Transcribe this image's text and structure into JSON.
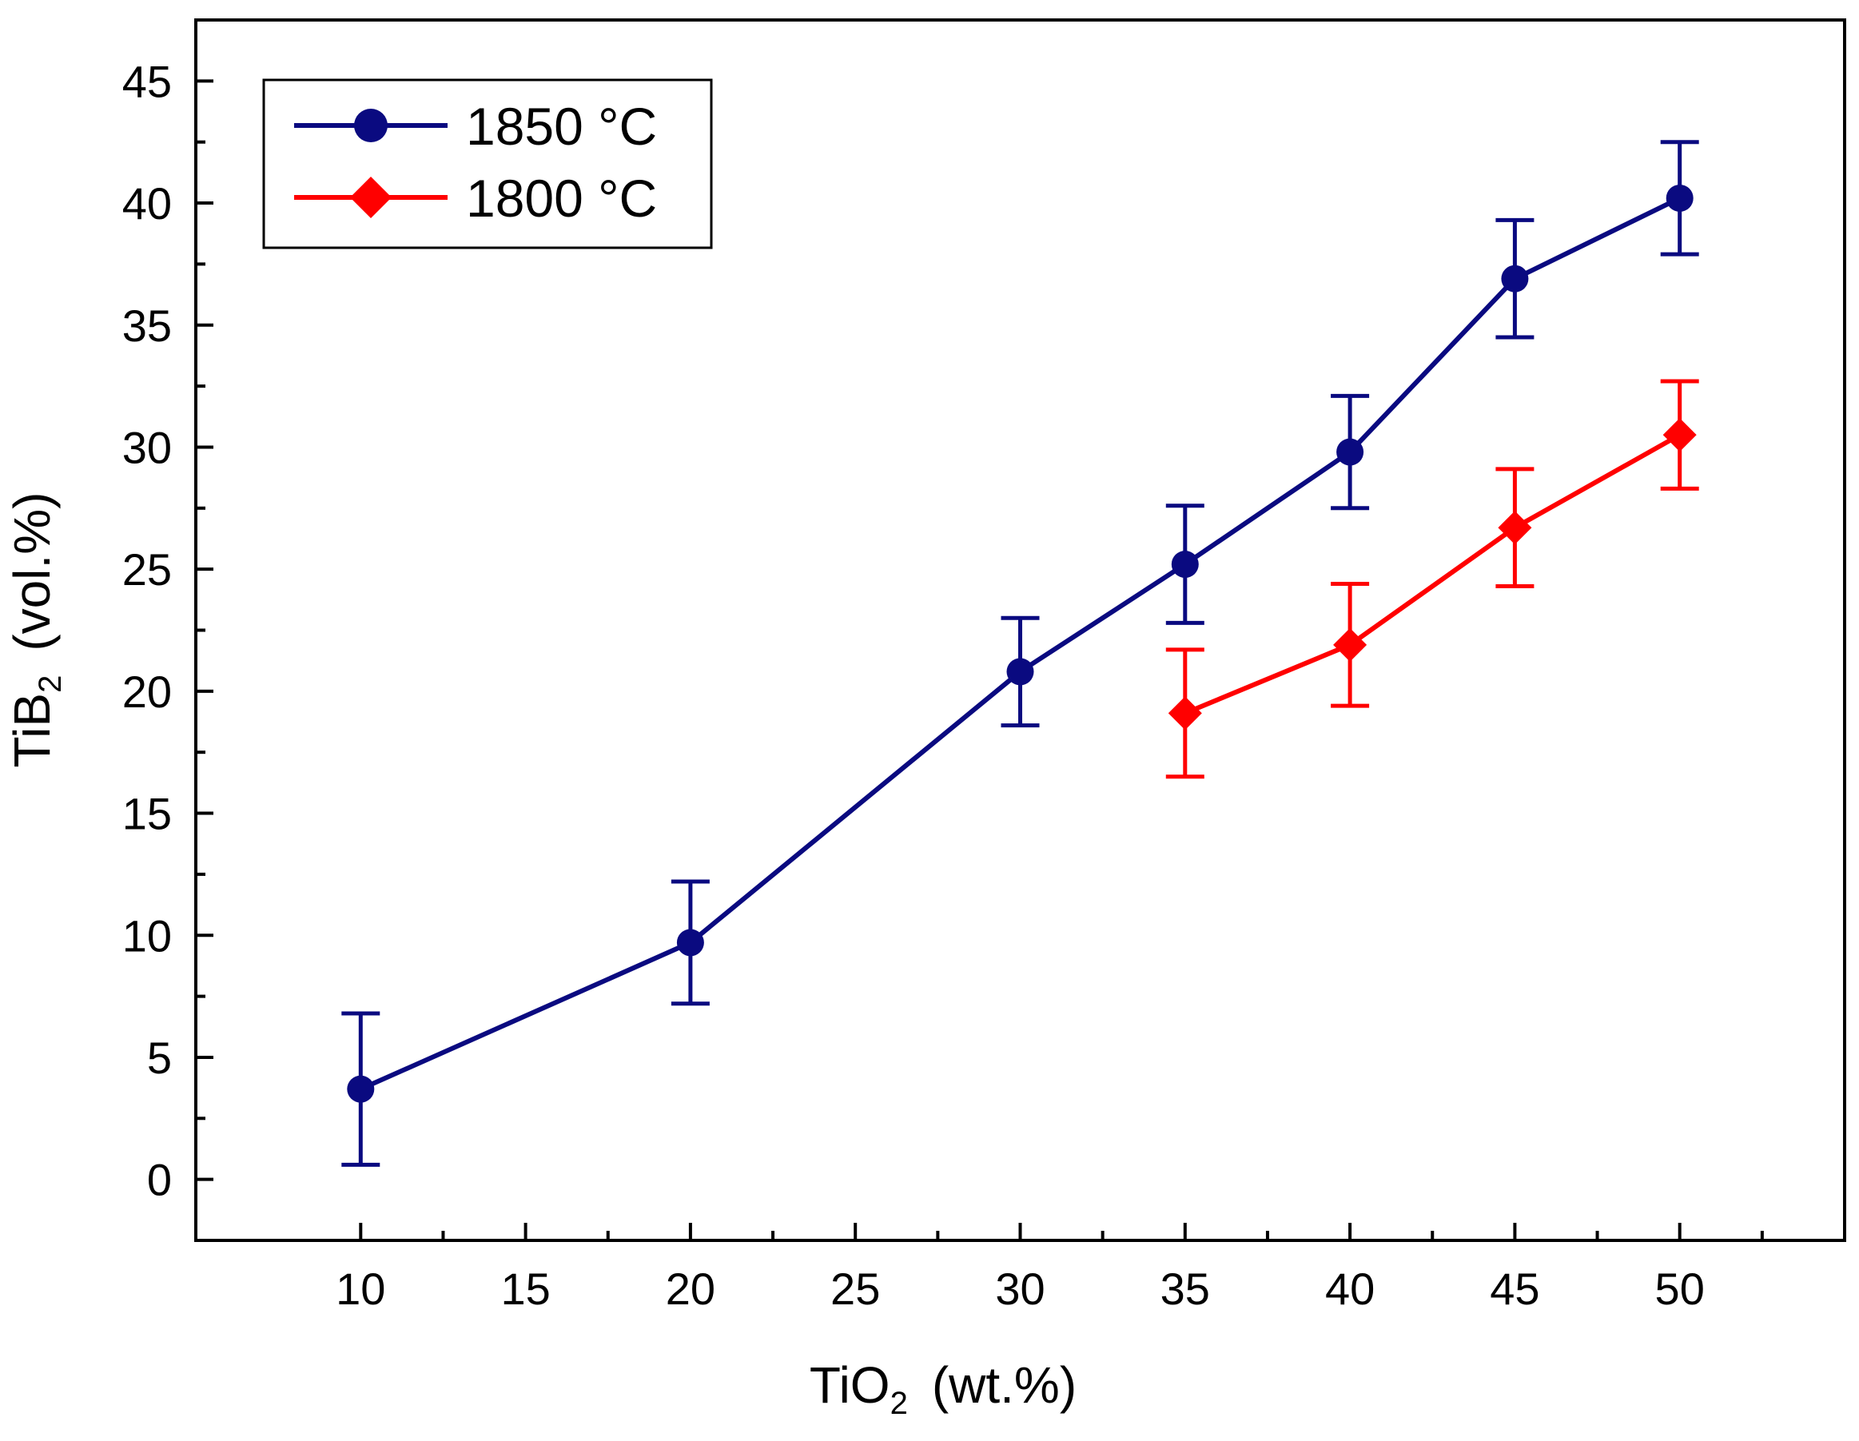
{
  "chart_data": {
    "type": "line",
    "title": "",
    "xlabel": {
      "main": "TiO",
      "sub": "2",
      "unit": "(wt.%)"
    },
    "ylabel": {
      "main": "TiB",
      "sub": "2",
      "unit": "(vol.%)"
    },
    "xlim": [
      5,
      55
    ],
    "ylim": [
      -2.5,
      47.5
    ],
    "xticks": [
      10,
      15,
      20,
      25,
      30,
      35,
      40,
      45,
      50
    ],
    "yticks": [
      0,
      5,
      10,
      15,
      20,
      25,
      30,
      35,
      40,
      45
    ],
    "legend_position": "top-left",
    "series": [
      {
        "name": "1850 °C",
        "color": "#0a0a80",
        "marker": "circle",
        "x": [
          10,
          20,
          30,
          35,
          40,
          45,
          50
        ],
        "y": [
          3.7,
          9.7,
          20.8,
          25.2,
          29.8,
          36.9,
          40.2
        ],
        "err": [
          3.1,
          2.5,
          2.2,
          2.4,
          2.3,
          2.4,
          2.3
        ]
      },
      {
        "name": "1800 °C",
        "color": "#ff0000",
        "marker": "diamond",
        "x": [
          35,
          40,
          45,
          50
        ],
        "y": [
          19.1,
          21.9,
          26.7,
          30.5
        ],
        "err": [
          2.6,
          2.5,
          2.4,
          2.2
        ]
      }
    ]
  }
}
